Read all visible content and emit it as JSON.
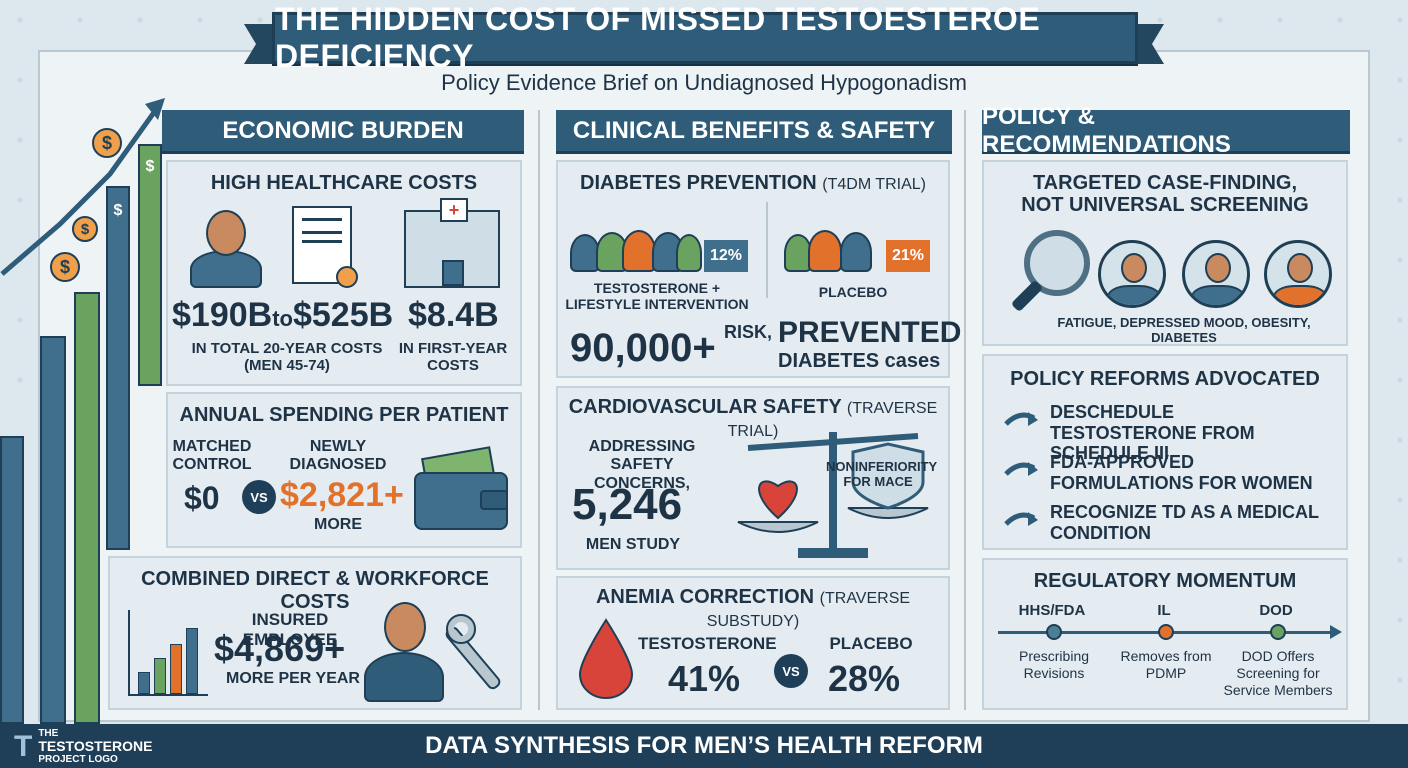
{
  "title": "THE HIDDEN COST OF MISSED TESTOESTEROE DEFICIENCY",
  "subtitle": "Policy Evidence Brief on Undiagnosed Hypogonadism",
  "columns": {
    "economic": "ECONOMIC BURDEN",
    "clinical": "CLINICAL BENEFITS & SAFETY",
    "policy": "POLICY & RECOMMENDATIONS"
  },
  "economic": {
    "costs": {
      "title": "HIGH HEALTHCARE COSTS",
      "range_low": "$190B",
      "range_to": "to",
      "range_high": "$525B",
      "range_caption": "IN TOTAL 20-YEAR COSTS (MEN 45-74)",
      "first_year": "$8.4B",
      "first_year_caption": "IN FIRST-YEAR COSTS"
    },
    "annual": {
      "title": "ANNUAL SPENDING PER PATIENT",
      "control_label": "MATCHED CONTROL",
      "control_value": "$0",
      "vs": "VS",
      "new_label": "NEWLY DIAGNOSED",
      "new_value": "$2,821+",
      "new_caption": "MORE"
    },
    "workforce": {
      "title": "COMBINED DIRECT & WORKFORCE COSTS",
      "label": "INSURED EMPLOYEE",
      "value": "$4,869+",
      "caption": "MORE PER YEAR"
    }
  },
  "clinical": {
    "diabetes": {
      "title": "DIABETES PREVENTION",
      "trial": "(T4DM TRIAL)",
      "treat_pct": "12%",
      "treat_label": "TESTOSTERONE + LIFESTYLE INTERVENTION",
      "placebo_pct": "21%",
      "placebo_label": "PLACEBO",
      "big_number": "90,000+",
      "risk": "RISK,",
      "prevented": "PREVENTED",
      "cases": "DIABETES cases"
    },
    "cardio": {
      "title": "CARDIOVASCULAR SAFETY",
      "trial": "(TRAVERSE TRIAL)",
      "concern": "ADDRESSING SAFETY CONCERNS,",
      "number": "5,246",
      "caption": "MEN STUDY",
      "shield": "NONINFERIORITY FOR MACE"
    },
    "anemia": {
      "title": "ANEMIA CORRECTION",
      "trial": "(TRAVERSE SUBSTUDY)",
      "t_label": "TESTOSTERONE",
      "t_value": "41%",
      "vs": "VS",
      "p_label": "PLACEBO",
      "p_value": "28%"
    }
  },
  "policy": {
    "targeted": {
      "title_line1": "TARGETED CASE-FINDING,",
      "title_line2": "NOT UNIVERSAL SCREENING",
      "symptoms": "FATIGUE, DEPRESSED MOOD, OBESITY, DIABETES"
    },
    "reforms": {
      "title": "POLICY REFORMS ADVOCATED",
      "items": [
        "DESCHEDULE TESTOSTERONE FROM SCHEDULE III",
        "FDA-APPROVED FORMULATIONS FOR WOMEN",
        "RECOGNIZE TD AS A MEDICAL CONDITION"
      ]
    },
    "momentum": {
      "title": "REGULATORY MOMENTUM",
      "points": [
        {
          "label": "HHS/FDA",
          "desc": "Prescribing Revisions",
          "color": "#4b7f93"
        },
        {
          "label": "IL",
          "desc": "Removes from PDMP",
          "color": "#e2712b"
        },
        {
          "label": "DOD",
          "desc": "DOD Offers Screening for Service Members",
          "color": "#6aa35f"
        }
      ]
    }
  },
  "footer": "DATA SYNTHESIS FOR MEN’S HEALTH REFORM",
  "logo": {
    "line1": "THE",
    "line2": "TESTOSTERONE",
    "line3": "PROJECT LOGO"
  }
}
